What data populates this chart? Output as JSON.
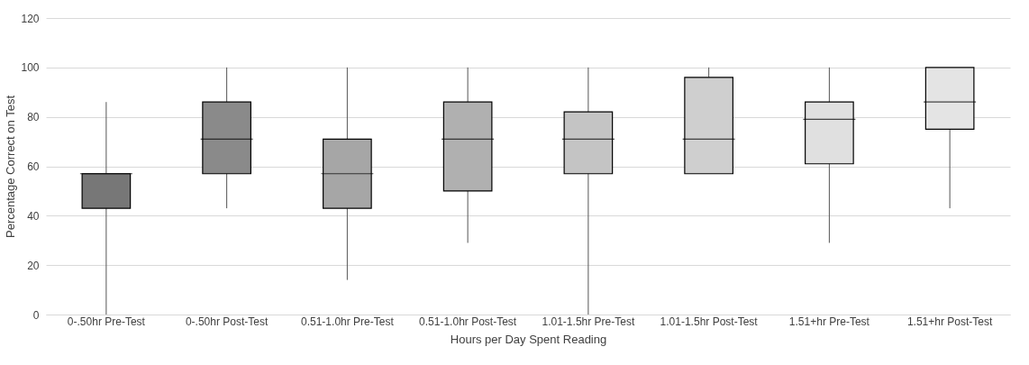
{
  "chart_data": {
    "type": "box",
    "xlabel": "Hours per Day Spent Reading",
    "ylabel": "Percentage Correct on Test",
    "categories": [
      "0-.50hr Pre-Test",
      "0-.50hr Post-Test",
      "0.51-1.0hr Pre-Test",
      "0.51-1.0hr Post-Test",
      "1.01-1.5hr Pre-Test",
      "1.01-1.5hr Post-Test",
      "1.51+hr Pre-Test",
      "1.51+hr Post-Test"
    ],
    "colors": [
      "#777777",
      "#8a8a8a",
      "#a6a6a6",
      "#b0b0b0",
      "#c4c4c4",
      "#cfcfcf",
      "#e0e0e0",
      "#e4e4e4"
    ],
    "boxes": [
      {
        "low": 0,
        "q1": 43,
        "median": 57,
        "q3": 57,
        "high": 86
      },
      {
        "low": 43,
        "q1": 57,
        "median": 71,
        "q3": 86,
        "high": 100
      },
      {
        "low": 14,
        "q1": 43,
        "median": 57,
        "q3": 71,
        "high": 100
      },
      {
        "low": 29,
        "q1": 50,
        "median": 71,
        "q3": 86,
        "high": 100
      },
      {
        "low": 0,
        "q1": 57,
        "median": 71,
        "q3": 82,
        "high": 100
      },
      {
        "low": 57,
        "q1": 57,
        "median": 71,
        "q3": 96,
        "high": 100
      },
      {
        "low": 29,
        "q1": 61,
        "median": 79,
        "q3": 86,
        "high": 100
      },
      {
        "low": 43,
        "q1": 75,
        "median": 86,
        "q3": 100,
        "high": 100
      }
    ],
    "ylim": [
      0,
      120
    ],
    "yticks": [
      0,
      20,
      40,
      60,
      80,
      100,
      120
    ],
    "grid": "y"
  }
}
